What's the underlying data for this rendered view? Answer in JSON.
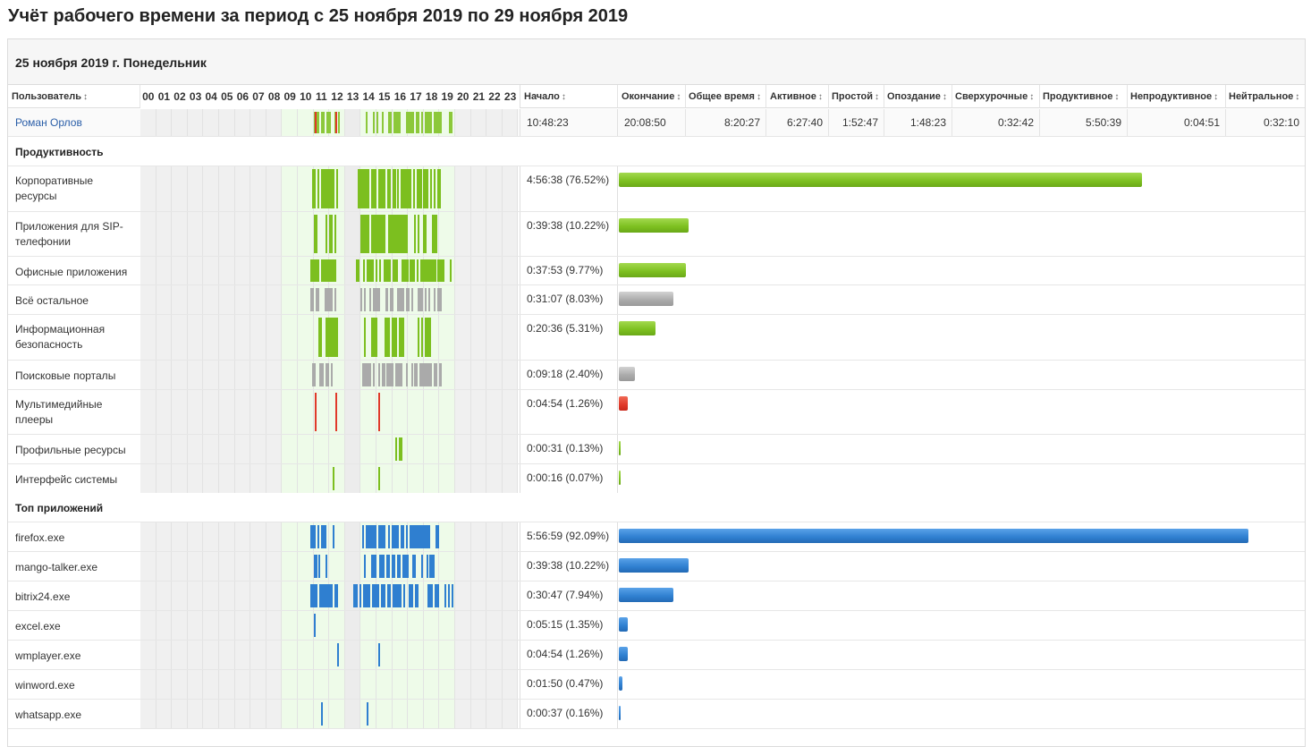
{
  "title": "Учёт рабочего времени за период с 25 ноября 2019 по 29 ноября 2019",
  "day_header": "25 ноября 2019 г. Понедельник",
  "columns": {
    "user": "Пользователь",
    "start": "Начало",
    "end": "Окончание",
    "total": "Общее время",
    "active": "Активное",
    "idle": "Простой",
    "late": "Опоздание",
    "overtime": "Сверхурочные",
    "productive": "Продуктивное",
    "unproductive": "Непродуктивное",
    "neutral": "Нейтральное"
  },
  "hours": [
    "00",
    "01",
    "02",
    "03",
    "04",
    "05",
    "06",
    "07",
    "08",
    "09",
    "10",
    "11",
    "12",
    "13",
    "14",
    "15",
    "16",
    "17",
    "18",
    "19",
    "20",
    "21",
    "22",
    "23"
  ],
  "user_row": {
    "name": "Роман Орлов",
    "start": "10:48:23",
    "end": "20:08:50",
    "total": "8:20:27",
    "active": "6:27:40",
    "idle": "1:52:47",
    "late": "1:48:23",
    "overtime": "0:32:42",
    "productive": "5:50:39",
    "unproductive": "0:04:51",
    "neutral": "0:32:10"
  },
  "sections": {
    "productivity": "Продуктивность",
    "top_apps": "Топ приложений"
  },
  "productivity_rows": [
    {
      "label": "Корпоративные ресурсы",
      "value": "4:56:38 (76.52%)",
      "percent": 76.52,
      "color": "green"
    },
    {
      "label": "Приложения для SIP-телефонии",
      "value": "0:39:38 (10.22%)",
      "percent": 10.22,
      "color": "green"
    },
    {
      "label": "Офисные приложения",
      "value": "0:37:53 (9.77%)",
      "percent": 9.77,
      "color": "green"
    },
    {
      "label": "Всё остальное",
      "value": "0:31:07 (8.03%)",
      "percent": 8.03,
      "color": "gray"
    },
    {
      "label": "Информационная безопасность",
      "value": "0:20:36 (5.31%)",
      "percent": 5.31,
      "color": "green"
    },
    {
      "label": "Поисковые порталы",
      "value": "0:09:18 (2.40%)",
      "percent": 2.4,
      "color": "gray"
    },
    {
      "label": "Мультимедийные плееры",
      "value": "0:04:54 (1.26%)",
      "percent": 1.26,
      "color": "red"
    },
    {
      "label": "Профильные ресурсы",
      "value": "0:00:31 (0.13%)",
      "percent": 0.13,
      "color": "green"
    },
    {
      "label": "Интерфейс системы",
      "value": "0:00:16 (0.07%)",
      "percent": 0.07,
      "color": "green"
    }
  ],
  "app_rows": [
    {
      "label": "firefox.exe",
      "value": "5:56:59 (92.09%)",
      "percent": 92.09,
      "color": "blue"
    },
    {
      "label": "mango-talker.exe",
      "value": "0:39:38 (10.22%)",
      "percent": 10.22,
      "color": "blue"
    },
    {
      "label": "bitrix24.exe",
      "value": "0:30:47 (7.94%)",
      "percent": 7.94,
      "color": "blue"
    },
    {
      "label": "excel.exe",
      "value": "0:05:15 (1.35%)",
      "percent": 1.35,
      "color": "blue"
    },
    {
      "label": "wmplayer.exe",
      "value": "0:04:54 (1.26%)",
      "percent": 1.26,
      "color": "blue"
    },
    {
      "label": "winword.exe",
      "value": "0:01:50 (0.47%)",
      "percent": 0.47,
      "color": "blue"
    },
    {
      "label": "whatsapp.exe",
      "value": "0:00:37 (0.16%)",
      "percent": 0.16,
      "color": "blue"
    }
  ],
  "colors": {
    "green": "#7cbf1f",
    "gray": "#aaaaaa",
    "red": "#e0392a",
    "blue": "#2f7fd0",
    "work_hours": "#eefbe9"
  },
  "icons": {
    "sort": "sort-arrows-icon"
  }
}
